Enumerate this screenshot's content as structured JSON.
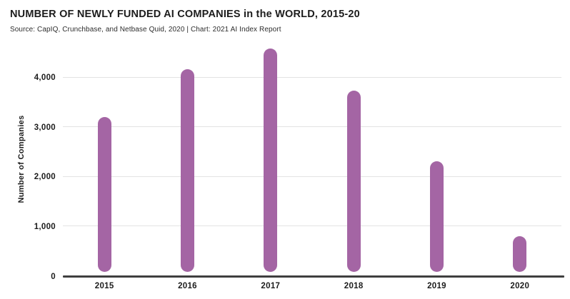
{
  "header": {
    "title": "NUMBER OF NEWLY FUNDED AI COMPANIES in the WORLD, 2015-20",
    "subtitle": "Source: CapIQ, Crunchbase, and Netbase Quid, 2020 | Chart: 2021 AI Index Report"
  },
  "chart_data": {
    "type": "bar",
    "title": "NUMBER OF NEWLY FUNDED AI COMPANIES in the WORLD, 2015-20",
    "subtitle": "Source: CapIQ, Crunchbase, and Netbase Quid, 2020 | Chart: 2021 AI Index Report",
    "categories": [
      "2015",
      "2016",
      "2017",
      "2018",
      "2019",
      "2020"
    ],
    "values": [
      3200,
      4170,
      4590,
      3740,
      2320,
      800
    ],
    "xlabel": "",
    "ylabel": "Number of Companies",
    "ylim": [
      0,
      4700
    ],
    "yticks": [
      {
        "value": 0,
        "label": "0"
      },
      {
        "value": 1000,
        "label": "1,000"
      },
      {
        "value": 2000,
        "label": "2,000"
      },
      {
        "value": 3000,
        "label": "3,000"
      },
      {
        "value": 4000,
        "label": "4,000"
      }
    ],
    "grid": "horizontal",
    "legend": "none",
    "bar_style": "rounded-pill",
    "colors": {
      "bar": "#a465a4",
      "axis_line": "#3f3f3f",
      "gridline": "#e3e3e3",
      "text": "#1c1c1c",
      "background": "#ffffff"
    }
  }
}
